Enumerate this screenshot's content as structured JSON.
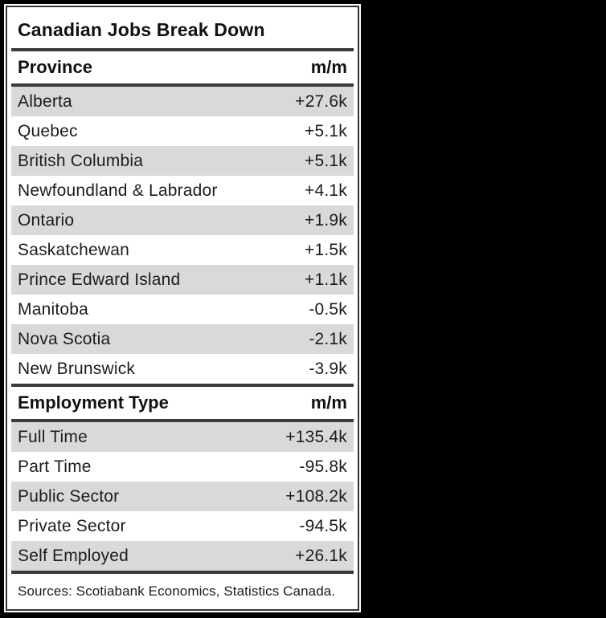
{
  "title": "Canadian Jobs Break Down",
  "source_note": "Sources: Scotiabank Economics, Statistics Canada.",
  "colors": {
    "background": "#000000",
    "panel": "#ffffff",
    "inner_border": "#333333",
    "rule": "#3a3a3a",
    "row_stripe": "#d9d9d9",
    "text": "#1c1c1c"
  },
  "sections": [
    {
      "header": {
        "label": "Province",
        "value": "m/m"
      },
      "rows": [
        {
          "label": "Alberta",
          "value": "+27.6k"
        },
        {
          "label": "Quebec",
          "value": "+5.1k"
        },
        {
          "label": "British Columbia",
          "value": "+5.1k"
        },
        {
          "label": "Newfoundland & Labrador",
          "value": "+4.1k"
        },
        {
          "label": "Ontario",
          "value": "+1.9k"
        },
        {
          "label": "Saskatchewan",
          "value": "+1.5k"
        },
        {
          "label": "Prince Edward Island",
          "value": "+1.1k"
        },
        {
          "label": "Manitoba",
          "value": "-0.5k"
        },
        {
          "label": "Nova Scotia",
          "value": "-2.1k"
        },
        {
          "label": "New Brunswick",
          "value": "-3.9k"
        }
      ]
    },
    {
      "header": {
        "label": "Employment Type",
        "value": "m/m"
      },
      "rows": [
        {
          "label": "Full Time",
          "value": "+135.4k"
        },
        {
          "label": "Part Time",
          "value": "-95.8k"
        },
        {
          "label": "Public Sector",
          "value": "+108.2k"
        },
        {
          "label": "Private Sector",
          "value": "-94.5k"
        },
        {
          "label": "Self Employed",
          "value": "+26.1k"
        }
      ]
    }
  ],
  "chart_data": {
    "type": "table",
    "title": "Canadian Jobs Break Down",
    "tables": [
      {
        "columns": [
          "Province",
          "m/m"
        ],
        "rows": [
          [
            "Alberta",
            "+27.6k"
          ],
          [
            "Quebec",
            "+5.1k"
          ],
          [
            "British Columbia",
            "+5.1k"
          ],
          [
            "Newfoundland & Labrador",
            "+4.1k"
          ],
          [
            "Ontario",
            "+1.9k"
          ],
          [
            "Saskatchewan",
            "+1.5k"
          ],
          [
            "Prince Edward Island",
            "+1.1k"
          ],
          [
            "Manitoba",
            "-0.5k"
          ],
          [
            "Nova Scotia",
            "-2.1k"
          ],
          [
            "New Brunswick",
            "-3.9k"
          ]
        ],
        "values_thousands": [
          27.6,
          5.1,
          5.1,
          4.1,
          1.9,
          1.5,
          1.1,
          -0.5,
          -2.1,
          -3.9
        ]
      },
      {
        "columns": [
          "Employment Type",
          "m/m"
        ],
        "rows": [
          [
            "Full Time",
            "+135.4k"
          ],
          [
            "Part Time",
            "-95.8k"
          ],
          [
            "Public Sector",
            "+108.2k"
          ],
          [
            "Private Sector",
            "-94.5k"
          ],
          [
            "Self Employed",
            "+26.1k"
          ]
        ],
        "values_thousands": [
          135.4,
          -95.8,
          108.2,
          -94.5,
          26.1
        ]
      }
    ],
    "source": "Sources: Scotiabank Economics, Statistics Canada."
  }
}
